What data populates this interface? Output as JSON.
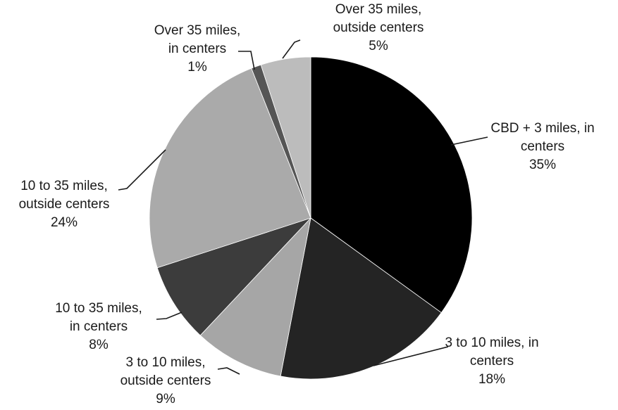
{
  "chart_data": {
    "type": "pie",
    "title": "",
    "start_angle_deg": 0,
    "direction": "clockwise",
    "slices": [
      {
        "label_lines": [
          "CBD + 3 miles, in",
          "centers"
        ],
        "value": 35,
        "value_label": "35%",
        "color": "#000000"
      },
      {
        "label_lines": [
          "3 to 10 miles, in",
          "centers"
        ],
        "value": 18,
        "value_label": "18%",
        "color": "#242424"
      },
      {
        "label_lines": [
          "3 to 10 miles,",
          "outside centers"
        ],
        "value": 9,
        "value_label": "9%",
        "color": "#a6a6a6"
      },
      {
        "label_lines": [
          "10 to 35 miles,",
          "in centers"
        ],
        "value": 8,
        "value_label": "8%",
        "color": "#3c3c3c"
      },
      {
        "label_lines": [
          "10 to 35 miles,",
          "outside centers"
        ],
        "value": 24,
        "value_label": "24%",
        "color": "#aaaaaa"
      },
      {
        "label_lines": [
          "Over 35 miles,",
          "in centers"
        ],
        "value": 1,
        "value_label": "1%",
        "color": "#555555"
      },
      {
        "label_lines": [
          "Over 35 miles,",
          "outside centers"
        ],
        "value": 5,
        "value_label": "5%",
        "color": "#bcbcbc"
      }
    ]
  }
}
